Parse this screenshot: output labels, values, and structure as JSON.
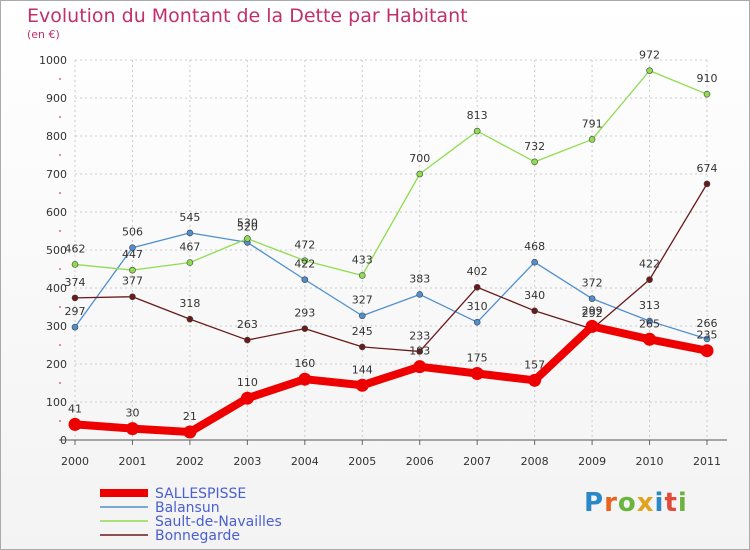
{
  "title": "Evolution du Montant de la Dette par Habitant",
  "subtitle": "(en €)",
  "logo_text": "Proxiti",
  "chart_data": {
    "type": "line",
    "title": "Evolution du Montant de la Dette par Habitant",
    "subtitle": "(en €)",
    "xlabel": "",
    "ylabel": "",
    "ylim": [
      0,
      1000
    ],
    "yticks": [
      0,
      100,
      200,
      300,
      400,
      500,
      600,
      700,
      800,
      900,
      1000
    ],
    "categories": [
      "2000",
      "2001",
      "2002",
      "2003",
      "2004",
      "2005",
      "2006",
      "2007",
      "2008",
      "2009",
      "2010",
      "2011"
    ],
    "grid": true,
    "legend_position": "bottom-left",
    "series": [
      {
        "name": "SALLESPISSE",
        "color": "#ee0000",
        "values": [
          41,
          30,
          21,
          110,
          160,
          144,
          193,
          175,
          157,
          299,
          265,
          235
        ]
      },
      {
        "name": "Balansun",
        "color": "#4f8fcf",
        "values": [
          297,
          506,
          545,
          520,
          422,
          327,
          383,
          310,
          468,
          372,
          313,
          266
        ]
      },
      {
        "name": "Sault-de-Navailles",
        "color": "#8fdc50",
        "values": [
          462,
          447,
          467,
          530,
          472,
          433,
          700,
          813,
          732,
          791,
          972,
          910
        ]
      },
      {
        "name": "Bonnegarde",
        "color": "#6b1a1a",
        "values": [
          374,
          377,
          318,
          263,
          293,
          245,
          233,
          402,
          340,
          292,
          422,
          674
        ]
      }
    ]
  }
}
